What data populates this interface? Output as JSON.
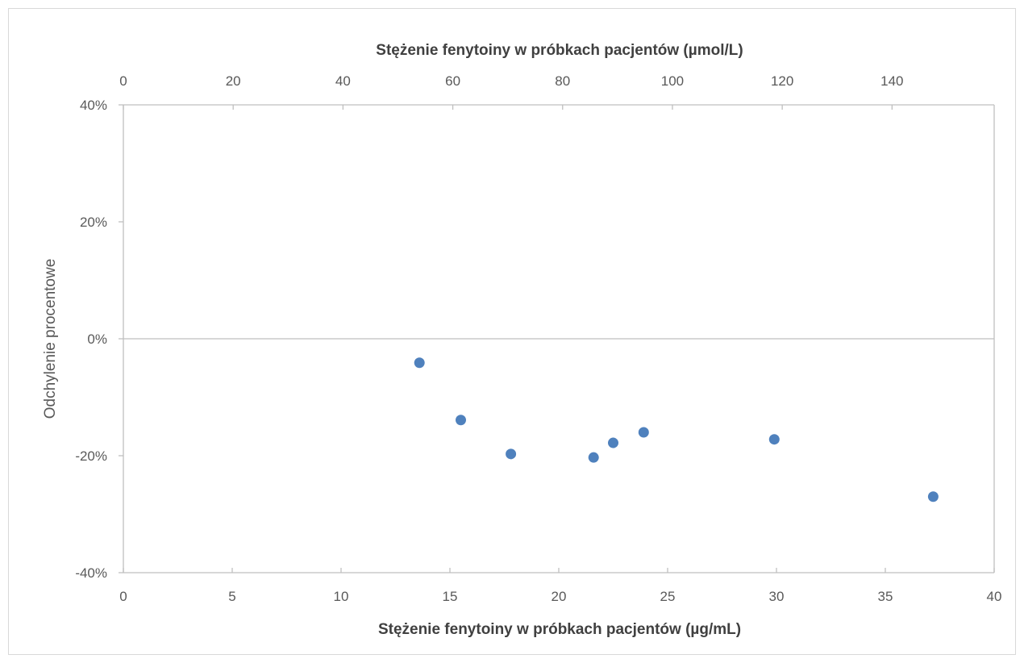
{
  "chart_data": {
    "type": "scatter",
    "title": "",
    "xlabel": "Stężenie fenytoiny w próbkach pacjentów (µg/mL)",
    "x2label": "Stężenie fenytoiny w próbkach pacjentów (µmol/L)",
    "ylabel": "Odchylenie procentowe",
    "xlim": [
      0,
      40
    ],
    "x2lim": [
      0,
      158.6
    ],
    "ylim": [
      -0.4,
      0.4
    ],
    "x_ticks": [
      0,
      5,
      10,
      15,
      20,
      25,
      30,
      35,
      40
    ],
    "x2_ticks": [
      0,
      20,
      40,
      60,
      80,
      100,
      120,
      140
    ],
    "y_ticks": [
      0.4,
      0.2,
      0,
      -0.2,
      -0.4
    ],
    "y_tick_labels": [
      "40%",
      "20%",
      "0%",
      "-20%",
      "-40%"
    ],
    "grid": false,
    "zero_line": true,
    "marker_color": "#4f81bd",
    "axis_color": "#bfbfbf",
    "points": [
      {
        "x": 13.6,
        "y": -0.041
      },
      {
        "x": 15.5,
        "y": -0.139
      },
      {
        "x": 17.8,
        "y": -0.197
      },
      {
        "x": 21.6,
        "y": -0.203
      },
      {
        "x": 22.5,
        "y": -0.178
      },
      {
        "x": 23.9,
        "y": -0.16
      },
      {
        "x": 29.9,
        "y": -0.172
      },
      {
        "x": 37.2,
        "y": -0.27
      }
    ]
  }
}
